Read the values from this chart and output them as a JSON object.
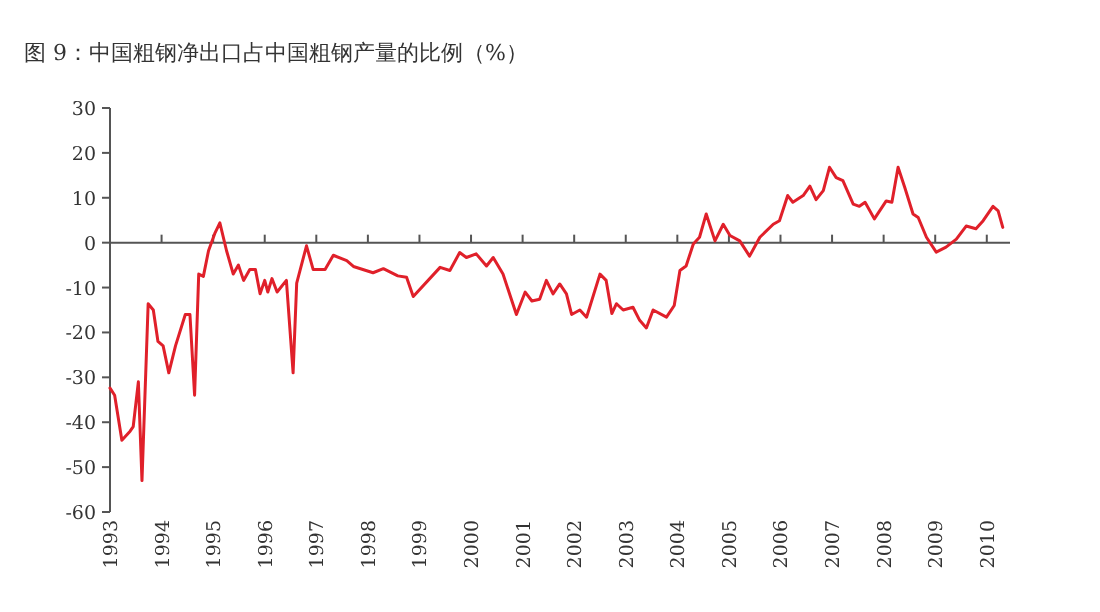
{
  "chart_data": {
    "type": "line",
    "title": "图 9：中国粗钢净出口占中国粗钢产量的比例（%）",
    "series": [
      {
        "color": "#e0202a",
        "x": [
          1993.0,
          1993.09,
          1993.23,
          1993.39,
          1993.45,
          1993.55,
          1993.62,
          1993.74,
          1993.84,
          1993.93,
          1994.03,
          1994.14,
          1994.27,
          1994.46,
          1994.55,
          1994.64,
          1994.72,
          1994.81,
          1994.91,
          1995.03,
          1995.13,
          1995.26,
          1995.39,
          1995.49,
          1995.59,
          1995.71,
          1995.82,
          1995.91,
          1996.0,
          1996.06,
          1996.14,
          1996.24,
          1996.42,
          1996.55,
          1996.62,
          1996.81,
          1996.94,
          1997.17,
          1997.33,
          1997.59,
          1997.72,
          1998.1,
          1998.3,
          1998.58,
          1998.75,
          1998.88,
          1999.4,
          1999.59,
          1999.78,
          1999.91,
          2000.1,
          2000.3,
          2000.43,
          2000.62,
          2000.88,
          2001.05,
          2001.18,
          2001.33,
          2001.46,
          2001.59,
          2001.72,
          2001.85,
          2001.95,
          2002.11,
          2002.24,
          2002.5,
          2002.62,
          2002.73,
          2002.82,
          2002.95,
          2003.14,
          2003.27,
          2003.4,
          2003.53,
          2003.79,
          2003.94,
          2004.05,
          2004.17,
          2004.31,
          2004.43,
          2004.56,
          2004.73,
          2004.89,
          2005.02,
          2005.21,
          2005.4,
          2005.6,
          2005.86,
          2005.98,
          2006.14,
          2006.24,
          2006.44,
          2006.57,
          2006.69,
          2006.83,
          2006.95,
          2007.08,
          2007.21,
          2007.41,
          2007.53,
          2007.64,
          2007.82,
          2008.05,
          2008.16,
          2008.28,
          2008.41,
          2008.57,
          2008.67,
          2008.83,
          2009.02,
          2009.21,
          2009.41,
          2009.6,
          2009.79,
          2009.93,
          2010.12,
          2010.22,
          2010.31
        ],
        "values": [
          -32.4,
          -34,
          -44,
          -42,
          -41,
          -31,
          -53,
          -13.6,
          -15,
          -22,
          -23,
          -29,
          -23,
          -16,
          -16,
          -34,
          -7,
          -7.5,
          -1.8,
          2,
          4.4,
          -1.8,
          -7,
          -5,
          -8.4,
          -6,
          -6,
          -11.4,
          -8.4,
          -11,
          -8,
          -11,
          -8.4,
          -29,
          -9,
          -0.7,
          -6,
          -6,
          -2.8,
          -4,
          -5.3,
          -6.7,
          -5.8,
          -7.4,
          -7.7,
          -12,
          -5.5,
          -6.2,
          -2.2,
          -3.3,
          -2.5,
          -5.2,
          -3.3,
          -7,
          -16,
          -11,
          -13,
          -12.6,
          -8.4,
          -11.4,
          -9.2,
          -11.4,
          -16,
          -15,
          -16.6,
          -7,
          -8.4,
          -15.8,
          -13.6,
          -15,
          -14.4,
          -17.3,
          -19,
          -15,
          -16.6,
          -14,
          -6.2,
          -5.2,
          -0.3,
          1.2,
          6.4,
          0.4,
          4.1,
          1.6,
          0.4,
          -3,
          1.2,
          4.1,
          4.9,
          10.5,
          9,
          10.5,
          12.6,
          9.6,
          11.6,
          16.8,
          14.5,
          13.8,
          8.6,
          8.1,
          9,
          5.3,
          9.3,
          9,
          16.8,
          12.3,
          6.4,
          5.6,
          1.2,
          -2.1,
          -1,
          0.8,
          3.7,
          3.1,
          4.9,
          8.1,
          7.1,
          3.4
        ]
      }
    ],
    "xlim": [
      1993,
      2010.45
    ],
    "xticks": [
      {
        "value": 1993,
        "label": "1993"
      },
      {
        "value": 1994,
        "label": "1994"
      },
      {
        "value": 1995,
        "label": "1995"
      },
      {
        "value": 1996,
        "label": "1996"
      },
      {
        "value": 1997,
        "label": "1997"
      },
      {
        "value": 1998,
        "label": "1998"
      },
      {
        "value": 1999,
        "label": "1999"
      },
      {
        "value": 2000,
        "label": "2000"
      },
      {
        "value": 2001,
        "label": "2001"
      },
      {
        "value": 2002,
        "label": "2002"
      },
      {
        "value": 2003,
        "label": "2003"
      },
      {
        "value": 2004,
        "label": "2004"
      },
      {
        "value": 2005,
        "label": "2005"
      },
      {
        "value": 2006,
        "label": "2006"
      },
      {
        "value": 2007,
        "label": "2007"
      },
      {
        "value": 2008,
        "label": "2008"
      },
      {
        "value": 2009,
        "label": "2009"
      },
      {
        "value": 2010,
        "label": "2010"
      }
    ],
    "ylim": [
      -60,
      30
    ],
    "yticks": [
      -60,
      -50,
      -40,
      -30,
      -20,
      -10,
      0,
      10,
      20,
      30
    ],
    "marker": "none",
    "line_style": "solid"
  }
}
